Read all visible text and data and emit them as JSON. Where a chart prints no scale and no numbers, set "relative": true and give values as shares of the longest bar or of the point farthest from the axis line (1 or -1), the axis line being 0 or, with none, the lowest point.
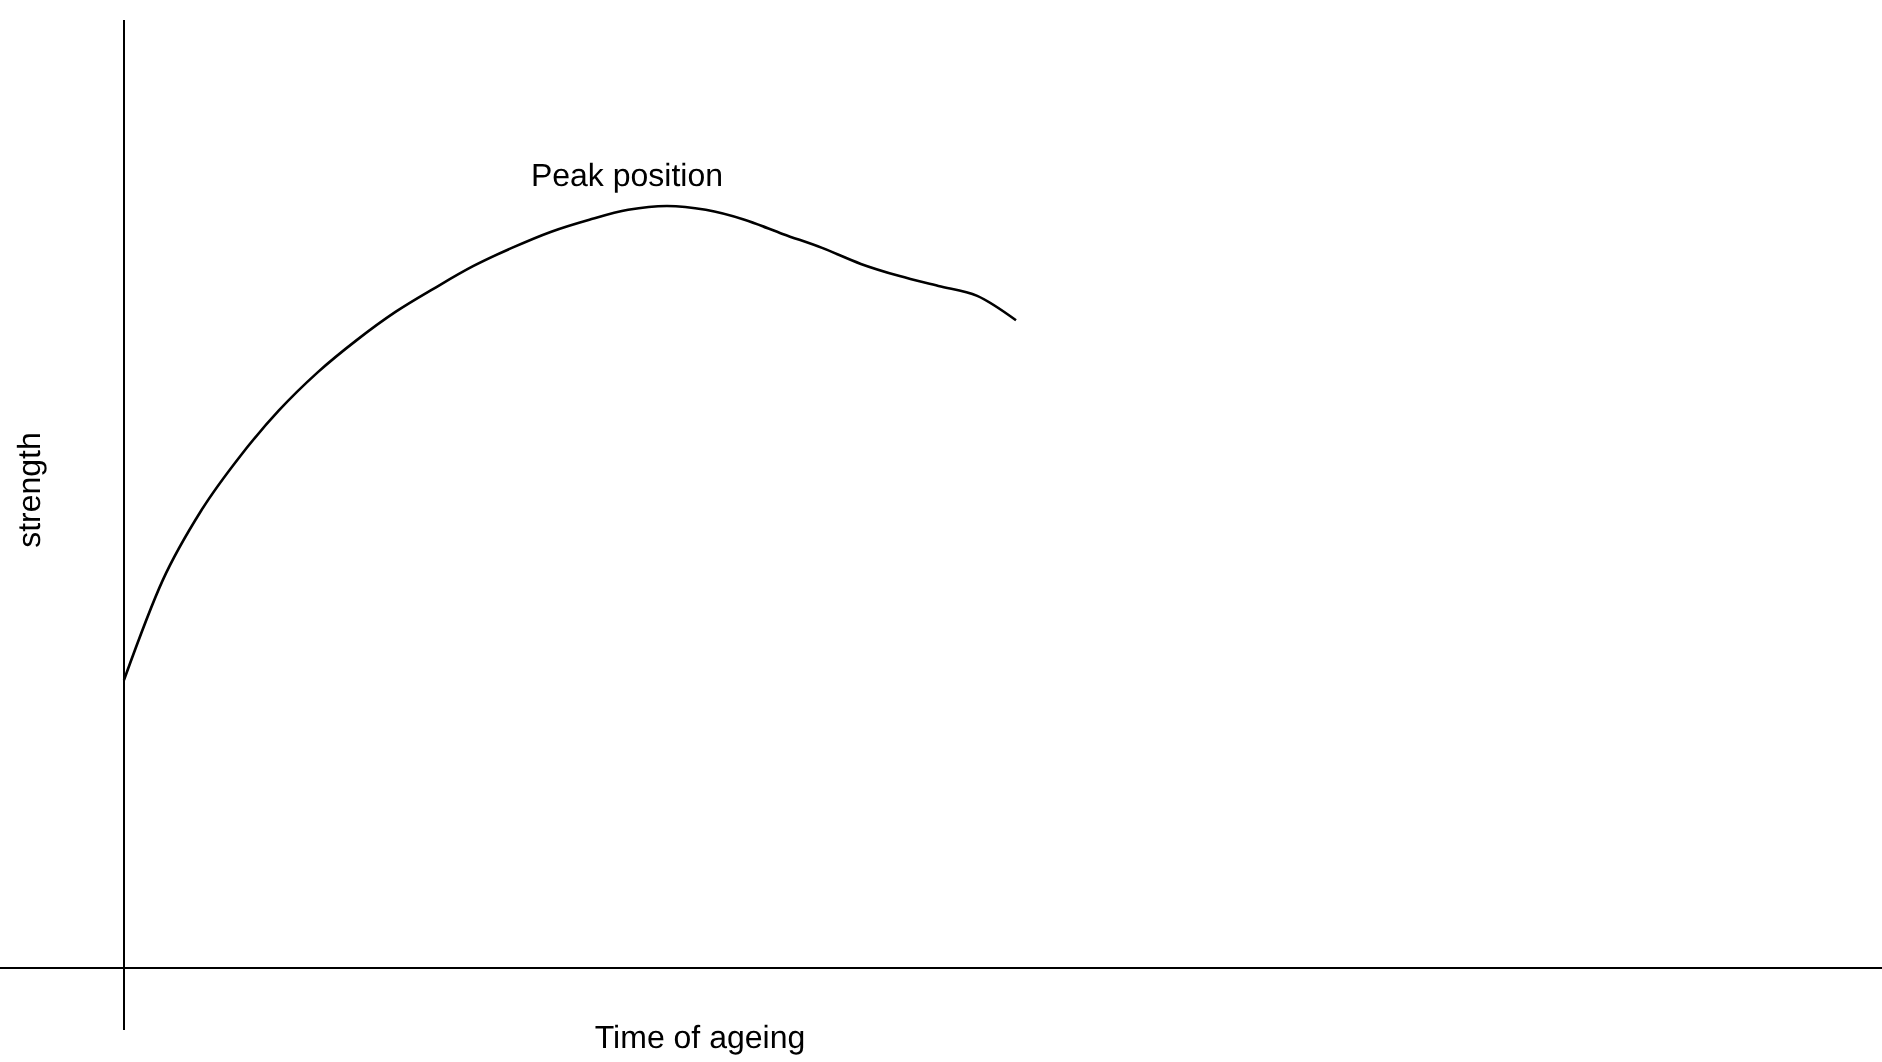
{
  "chart_data": {
    "type": "line",
    "relative": true,
    "xlabel": "Time of ageing",
    "ylabel": "strength",
    "color": "#000000",
    "marker": "none",
    "categories": [
      null,
      null,
      null,
      null,
      null,
      null,
      null,
      null,
      null,
      null,
      null,
      null,
      null,
      null,
      null,
      null,
      null,
      null,
      null,
      null,
      null,
      null,
      null,
      null
    ],
    "values": [
      0.378,
      0.509,
      0.601,
      0.672,
      0.732,
      0.782,
      0.824,
      0.861,
      0.892,
      0.921,
      0.945,
      0.966,
      0.982,
      0.995,
      1,
      0.995,
      0.982,
      0.963,
      0.945,
      0.924,
      0.908,
      0.895,
      0.882,
      0.85
    ],
    "annotations": [
      {
        "text": "Peak position",
        "y": 1
      }
    ]
  }
}
